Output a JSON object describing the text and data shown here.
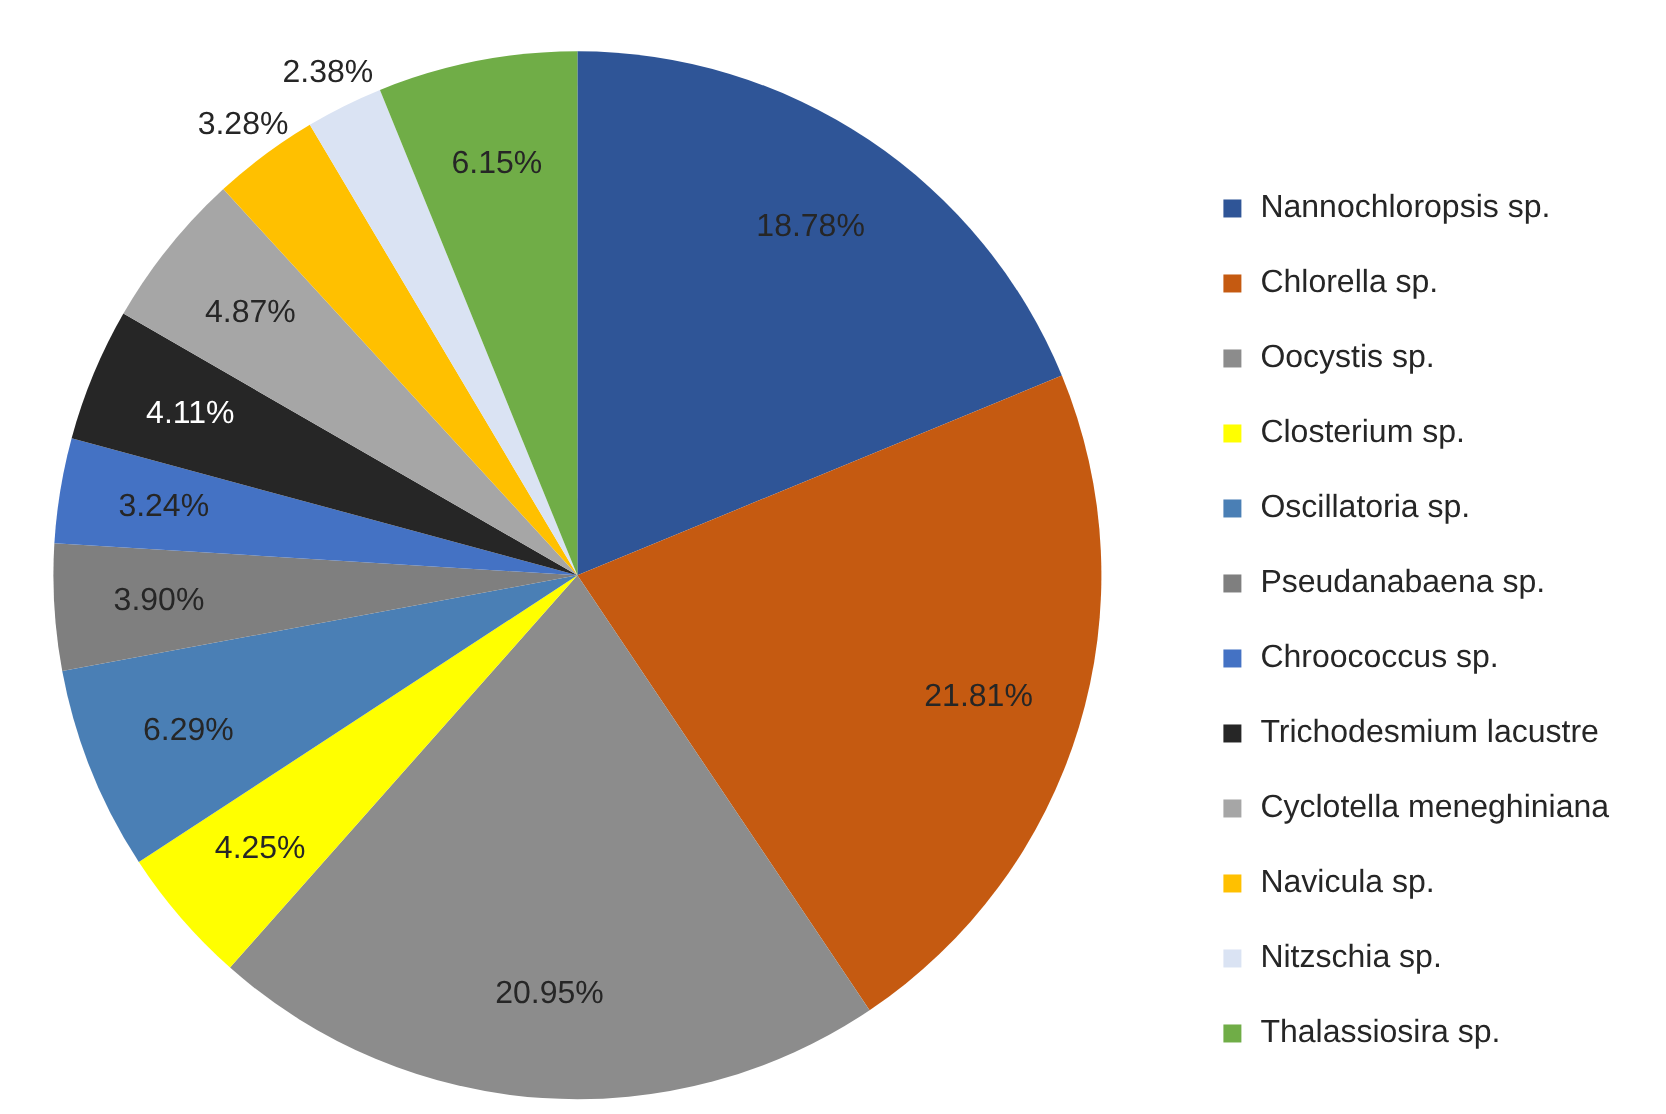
{
  "chart_data": {
    "type": "pie",
    "categories": [
      "Nannochloropsis sp.",
      "Chlorella sp.",
      "Oocystis sp.",
      "Closterium sp.",
      "Oscillatoria sp.",
      "Pseudanabaena sp.",
      "Chroococcus sp.",
      "Trichodesmium lacustre",
      "Cyclotella meneghiniana",
      "Navicula sp.",
      "Nitzschia sp.",
      "Thalassiosira sp."
    ],
    "values": [
      18.78,
      21.81,
      20.95,
      4.25,
      6.29,
      3.9,
      3.24,
      4.11,
      4.87,
      3.28,
      2.38,
      6.15
    ],
    "colors": [
      "#2f5597",
      "#c55a11",
      "#8c8c8c",
      "#ffff00",
      "#4a7fb5",
      "#7f7f7f",
      "#4472c4",
      "#262626",
      "#a6a6a6",
      "#ffc000",
      "#dae3f3",
      "#70ad47"
    ],
    "value_labels": [
      "18.78%",
      "21.81%",
      "20.95%",
      "4.25%",
      "6.29%",
      "3.90%",
      "3.24%",
      "4.11%",
      "4.87%",
      "3.28%",
      "2.38%",
      "6.15%"
    ],
    "legend": "right"
  }
}
